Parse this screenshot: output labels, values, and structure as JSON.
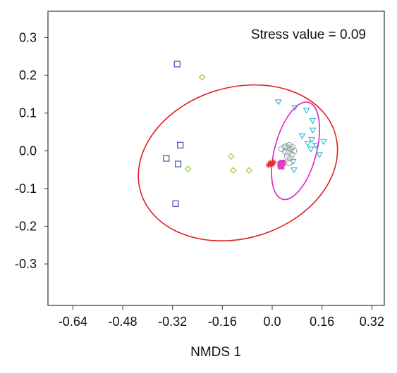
{
  "chart_data": {
    "type": "scatter",
    "title": "",
    "xlabel": "NMDS 1",
    "ylabel": "",
    "xlim": [
      -0.72,
      0.36
    ],
    "ylim": [
      -0.41,
      0.37
    ],
    "x_ticks": [
      "-0.64",
      "-0.48",
      "-0.32",
      "-0.16",
      "0.0",
      "0.16",
      "0.32"
    ],
    "x_tick_values": [
      -0.64,
      -0.48,
      -0.32,
      -0.16,
      0.0,
      0.16,
      0.32
    ],
    "y_ticks": [
      "0.3",
      "0.2",
      "0.1",
      "0.0",
      "-0.1",
      "-0.2",
      "-0.3"
    ],
    "y_tick_values": [
      0.3,
      0.2,
      0.1,
      0.0,
      -0.1,
      -0.2,
      -0.3
    ],
    "annotation": "Stress value = 0.09",
    "grid": false,
    "series": [
      {
        "marker": "square-open",
        "color": "#4a4ab8",
        "points": [
          [
            -0.305,
            0.23
          ],
          [
            -0.295,
            0.015
          ],
          [
            -0.34,
            -0.02
          ],
          [
            -0.302,
            -0.035
          ],
          [
            -0.31,
            -0.14
          ]
        ]
      },
      {
        "marker": "diamond-open",
        "color": "#8fcf3a",
        "points": [
          [
            -0.225,
            0.195
          ],
          [
            -0.27,
            -0.048
          ],
          [
            -0.132,
            -0.015
          ],
          [
            -0.125,
            -0.052
          ],
          [
            -0.074,
            -0.052
          ]
        ]
      },
      {
        "marker": "triangle-down-open",
        "color": "#2cb5d8",
        "points": [
          [
            0.02,
            0.13
          ],
          [
            0.073,
            0.115
          ],
          [
            0.11,
            0.108
          ],
          [
            0.13,
            0.08
          ],
          [
            0.13,
            0.055
          ],
          [
            0.096,
            0.04
          ],
          [
            0.127,
            0.03
          ],
          [
            0.165,
            0.025
          ],
          [
            0.114,
            0.02
          ],
          [
            0.14,
            0.015
          ],
          [
            0.124,
            0.005
          ],
          [
            0.152,
            -0.01
          ],
          [
            0.07,
            -0.05
          ],
          [
            0.067,
            -0.028
          ]
        ]
      },
      {
        "marker": "circle-open",
        "color": "#8aa0a0",
        "points": [
          [
            0.045,
            0.012
          ],
          [
            0.05,
            0.008
          ],
          [
            0.055,
            0.015
          ],
          [
            0.06,
            0.005
          ],
          [
            0.042,
            -0.002
          ],
          [
            0.052,
            -0.006
          ],
          [
            0.063,
            -0.01
          ],
          [
            0.048,
            -0.015
          ],
          [
            0.058,
            -0.02
          ],
          [
            0.055,
            -0.032
          ],
          [
            0.07,
            0.0
          ],
          [
            0.04,
            0.01
          ],
          [
            0.065,
            0.01
          ],
          [
            0.03,
            0.005
          ]
        ]
      },
      {
        "marker": "square-filled",
        "color": "#e040c0",
        "points": [
          [
            0.027,
            -0.036
          ],
          [
            0.033,
            -0.032
          ],
          [
            0.029,
            -0.041
          ]
        ]
      },
      {
        "marker": "star",
        "color": "#e0302a",
        "points": [
          [
            -0.006,
            -0.032
          ],
          [
            0.0,
            -0.036
          ],
          [
            -0.012,
            -0.038
          ],
          [
            0.005,
            -0.03
          ]
        ]
      }
    ],
    "ellipses": [
      {
        "color": "#e02020",
        "cx": -0.11,
        "cy": -0.032,
        "rx": 0.326,
        "ry": 0.2,
        "angle_deg": -17
      },
      {
        "color": "#e020c8",
        "cx": 0.075,
        "cy": 0.0,
        "rx": 0.067,
        "ry": 0.133,
        "angle_deg": 15
      }
    ]
  }
}
